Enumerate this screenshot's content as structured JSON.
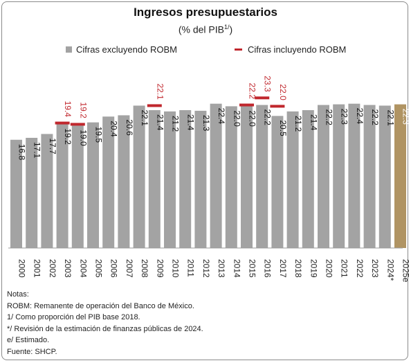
{
  "chart_data": {
    "type": "bar",
    "title": "Ingresos presupuestarios",
    "subtitle_main": "(% del PIB",
    "subtitle_sup": "1/",
    "subtitle_end": ")",
    "categories": [
      "2000",
      "2001",
      "2002",
      "2003",
      "2004",
      "2005",
      "2006",
      "2007",
      "2008",
      "2009",
      "2010",
      "2011",
      "2012",
      "2013",
      "2014",
      "2015",
      "2016",
      "2017",
      "2018",
      "2019",
      "2020",
      "2021",
      "2022",
      "2023",
      "2024*",
      "2025e"
    ],
    "series": [
      {
        "name": "Cifras excluyendo ROBM",
        "values": [
          16.8,
          17.1,
          17.7,
          19.2,
          19.0,
          19.5,
          20.4,
          20.6,
          22.1,
          21.4,
          21.2,
          21.4,
          21.3,
          22.4,
          22.0,
          22.0,
          22.2,
          20.5,
          21.2,
          21.4,
          22.2,
          22.3,
          22.4,
          22.2,
          22.1,
          22.3
        ],
        "labels": [
          "16.8",
          "17.1",
          "17.7",
          "19.2",
          "19.0",
          "19.5",
          "20.4",
          "20.6",
          "22.1",
          "21.4",
          "21.2",
          "21.4",
          "21.3",
          "22.4",
          "22.0",
          "22.0",
          "22.2",
          "20.5",
          "21.2",
          "21.4",
          "22.2",
          "22.3",
          "22.4",
          "22.2",
          "22.1",
          "22.3"
        ]
      },
      {
        "name": "Cifras incluyendo ROBM",
        "points": [
          {
            "category": "2003",
            "value": 19.4,
            "label": "19.4"
          },
          {
            "category": "2004",
            "value": 19.2,
            "label": "19.2"
          },
          {
            "category": "2009",
            "value": 22.1,
            "label": "22.1"
          },
          {
            "category": "2015",
            "value": 22.2,
            "label": "22.2"
          },
          {
            "category": "2016",
            "value": 23.3,
            "label": "23.3"
          },
          {
            "category": "2017",
            "value": 22.0,
            "label": "22.0"
          }
        ]
      }
    ],
    "highlight_category": "2025e",
    "ylim": [
      0,
      24.5
    ],
    "grid": false,
    "legend_position": "top",
    "colors": {
      "bar": "#a3a3a3",
      "bar_highlight": "#b09463",
      "robm_marker": "#c0272d",
      "robm_label": "#c0272d",
      "bar_label": "#111111",
      "bar_label_highlight": "#ffffff"
    }
  },
  "notes": [
    "Notas:",
    "ROBM: Remanente de operación del Banco de México.",
    "1/ Como proporción del PIB base 2018.",
    "*/ Revisión de la estimación de finanzas públicas de 2024.",
    "e/ Estimado.",
    "Fuente: SHCP."
  ]
}
